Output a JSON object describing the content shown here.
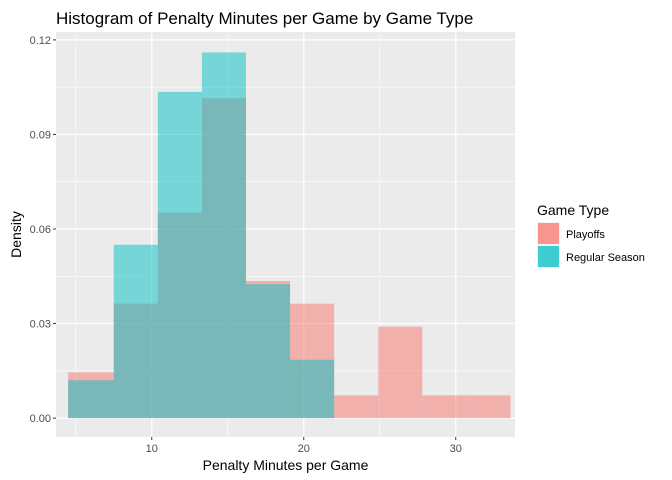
{
  "chart_data": {
    "type": "histogram",
    "title": "Histogram of Penalty Minutes per Game by Game Type",
    "xlabel": "Penalty Minutes per Game",
    "ylabel": "Density",
    "xlim": [
      3.7,
      33.9
    ],
    "ylim": [
      -0.006,
      0.1225
    ],
    "x_ticks": [
      10,
      20,
      30
    ],
    "y_ticks": [
      0.0,
      0.03,
      0.06,
      0.09,
      0.12
    ],
    "y_tick_labels": [
      "0.00",
      "0.03",
      "0.06",
      "0.09",
      "0.12"
    ],
    "grid": true,
    "bin_edges": [
      4.5,
      7.5,
      10.4,
      13.3,
      16.2,
      19.1,
      22.0,
      24.9,
      27.8,
      30.7,
      33.6
    ],
    "legend": {
      "title": "Game Type",
      "placement": "right"
    },
    "series": [
      {
        "name": "Playoffs",
        "color": "#F8766D",
        "values": [
          0.0145,
          0.0363,
          0.0652,
          0.1015,
          0.0435,
          0.0363,
          0.0072,
          0.029,
          0.0072,
          0.0072
        ]
      },
      {
        "name": "Regular Season",
        "color": "#00BFC4",
        "values": [
          0.012,
          0.055,
          0.1035,
          0.116,
          0.0425,
          0.0185,
          0,
          0,
          0,
          0
        ]
      }
    ]
  }
}
